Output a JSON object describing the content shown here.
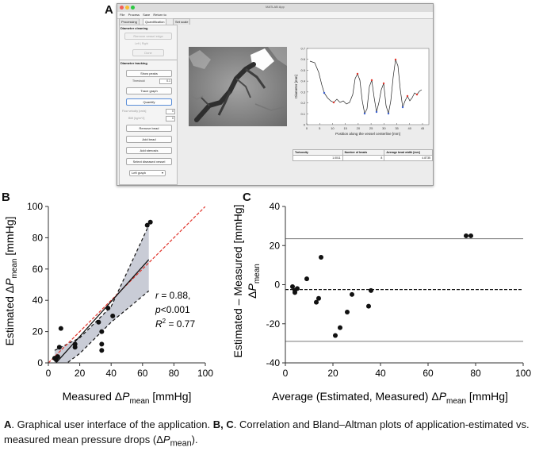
{
  "panels": {
    "a": "A",
    "b": "B",
    "c": "C"
  },
  "app": {
    "window_title": "MATLAB App",
    "menu": [
      "File",
      "Process",
      "Save",
      "Return to"
    ],
    "tabs": [
      "Processing",
      "Quantification",
      "Set scale"
    ],
    "sidebar": {
      "diameter_cleaning_header": "Diameter cleaning",
      "remove_vessel_edge_label": "Remove vessel edge",
      "left_right_label": "Left   |   Right",
      "done_label": "Done",
      "diameter_tracking_header": "Diameter tracking",
      "show_peaks_label": "Show peaks",
      "threshold_label": "Threshold",
      "threshold_value": "0.1",
      "trace_graph_label": "Trace graph",
      "quantify_label": "Quantify",
      "flow_velocity_label": "Flow velocity [cm/s]",
      "flow_velocity_value": "0",
      "bmi_label": "BMI [kg/m^2]",
      "bmi_value": "0",
      "remove_bead_label": "Remove bead",
      "add_bead_label": "Add bead",
      "add_stenosis_label": "Add stenosis",
      "select_diseased_label": "Select diseased vessel",
      "graph_select_value": "Left graph"
    },
    "plot": {
      "ylabel": "Diameter [mm]",
      "xlabel": "Position along the vessel centerline [mm]",
      "y_ticks": [
        "0",
        "0.1",
        "0.2",
        "0.3",
        "0.4",
        "0.5",
        "0.6",
        "0.7"
      ],
      "x_ticks": [
        "0",
        "5",
        "10",
        "15",
        "20",
        "25",
        "30",
        "35",
        "40",
        "45"
      ]
    },
    "results_table": {
      "headers": [
        "Tortuosity",
        "Number of beads",
        "Average bead width [mm]"
      ],
      "values": [
        "1.0011",
        "8",
        "4.8735"
      ]
    }
  },
  "correlation": {
    "ylabel_prefix": "Estimated Δ",
    "ylabel_var": "P",
    "ylabel_sub": "mean",
    "ylabel_unit": " [mmHg]",
    "xlabel_prefix": "Measured Δ",
    "xlabel_var": "P",
    "xlabel_sub": "mean",
    "xlabel_unit": " [mmHg]",
    "stat_r_var": "r",
    "stat_r_val": " = 0.88,",
    "stat_p_var": "p",
    "stat_p_val": "<0.001",
    "stat_r2_var": "R",
    "stat_r2_sup": "2",
    "stat_r2_val": " = 0.77"
  },
  "bland_altman": {
    "ylabel_line1": "Estimated – Measured",
    "ylabel_line1_unit": " [mmHg]",
    "ylabel_line2_prefix": "Δ",
    "ylabel_line2_var": "P",
    "ylabel_line2_sub": "mean",
    "xlabel_prefix": "Average (Estimated, Measured) Δ",
    "xlabel_var": "P",
    "xlabel_sub": "mean",
    "xlabel_unit": " [mmHg]"
  },
  "chart_data": [
    {
      "type": "scatter",
      "panel": "B",
      "xlim": [
        0,
        100
      ],
      "ylim": [
        0,
        100
      ],
      "x_ticks": [
        0,
        20,
        40,
        60,
        80,
        100
      ],
      "y_ticks": [
        0,
        20,
        40,
        60,
        80,
        100
      ],
      "points": [
        {
          "x": 4,
          "y": 3
        },
        {
          "x": 5,
          "y": 2
        },
        {
          "x": 6,
          "y": 4
        },
        {
          "x": 7,
          "y": 10
        },
        {
          "x": 8,
          "y": 22
        },
        {
          "x": 17,
          "y": 10
        },
        {
          "x": 17,
          "y": 12
        },
        {
          "x": 32,
          "y": 26
        },
        {
          "x": 34,
          "y": 20
        },
        {
          "x": 34,
          "y": 12
        },
        {
          "x": 34,
          "y": 8
        },
        {
          "x": 38,
          "y": 35
        },
        {
          "x": 41,
          "y": 30
        },
        {
          "x": 63,
          "y": 88
        },
        {
          "x": 65,
          "y": 90
        }
      ],
      "identity_line": [
        [
          0,
          0
        ],
        [
          100,
          100
        ]
      ],
      "regression_line": [
        [
          4,
          -1
        ],
        [
          64,
          66
        ]
      ],
      "confidence_band_upper": [
        [
          4,
          8
        ],
        [
          20,
          16
        ],
        [
          40,
          36
        ],
        [
          64,
          88
        ]
      ],
      "confidence_band_lower": [
        [
          4,
          -6
        ],
        [
          20,
          6
        ],
        [
          40,
          26
        ],
        [
          64,
          46
        ]
      ],
      "stats": {
        "r": 0.88,
        "p": "<0.001",
        "R2": 0.77
      }
    },
    {
      "type": "scatter",
      "panel": "C",
      "xlim": [
        0,
        100
      ],
      "ylim": [
        -40,
        40
      ],
      "x_ticks": [
        0,
        20,
        40,
        60,
        80,
        100
      ],
      "y_ticks": [
        -40,
        -20,
        0,
        20,
        40
      ],
      "points": [
        {
          "x": 3,
          "y": -1
        },
        {
          "x": 4,
          "y": -3
        },
        {
          "x": 4,
          "y": -4
        },
        {
          "x": 5,
          "y": -2
        },
        {
          "x": 9,
          "y": 3
        },
        {
          "x": 13,
          "y": -9
        },
        {
          "x": 14,
          "y": -7
        },
        {
          "x": 15,
          "y": 14
        },
        {
          "x": 21,
          "y": -26
        },
        {
          "x": 23,
          "y": -22
        },
        {
          "x": 26,
          "y": -14
        },
        {
          "x": 28,
          "y": -5
        },
        {
          "x": 35,
          "y": -11
        },
        {
          "x": 36,
          "y": -3
        },
        {
          "x": 76,
          "y": 25
        },
        {
          "x": 78,
          "y": 25
        }
      ],
      "mean_difference": -2.5,
      "upper_limit_of_agreement": 23.5,
      "lower_limit_of_agreement": -29
    }
  ],
  "caption": {
    "a_letter": "A",
    "a_text": ". Graphical user interface of the application. ",
    "bc_letters": "B, C",
    "bc_text": ". Correlation and Bland–Altman plots of application-estimated vs. measured mean pressure drops (Δ",
    "var": "P",
    "sub": "mean",
    "end": ")."
  },
  "colors": {
    "identity_line": "#e0342b",
    "band_fill": "#c9ccd6",
    "points": "#111111",
    "diameter_trace": "#222222",
    "peak_markers": "#e0342b"
  }
}
